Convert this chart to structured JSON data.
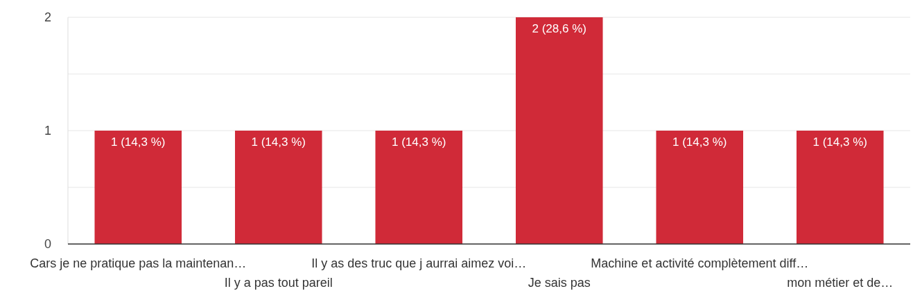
{
  "chart_data": {
    "type": "bar",
    "categories": [
      "Cars je ne pratique pas la maintenan…",
      "Il y a pas tout pareil",
      "Il y as des truc que j aurrai aimez voi…",
      "Je sais pas",
      "Machine et activité complètement diff…",
      "mon métier et de…"
    ],
    "values": [
      1,
      1,
      1,
      2,
      1,
      1
    ],
    "value_labels": [
      "1 (14,3 %)",
      "1 (14,3 %)",
      "1 (14,3 %)",
      "2 (28,6 %)",
      "1 (14,3 %)",
      "1 (14,3 %)"
    ],
    "color": "#d02a38",
    "ylim": [
      0,
      2
    ],
    "yticks": [
      0,
      {
        "value": 0.5,
        "label": null
      },
      1,
      {
        "value": 1.5,
        "label": null
      },
      2
    ],
    "grid": true
  }
}
